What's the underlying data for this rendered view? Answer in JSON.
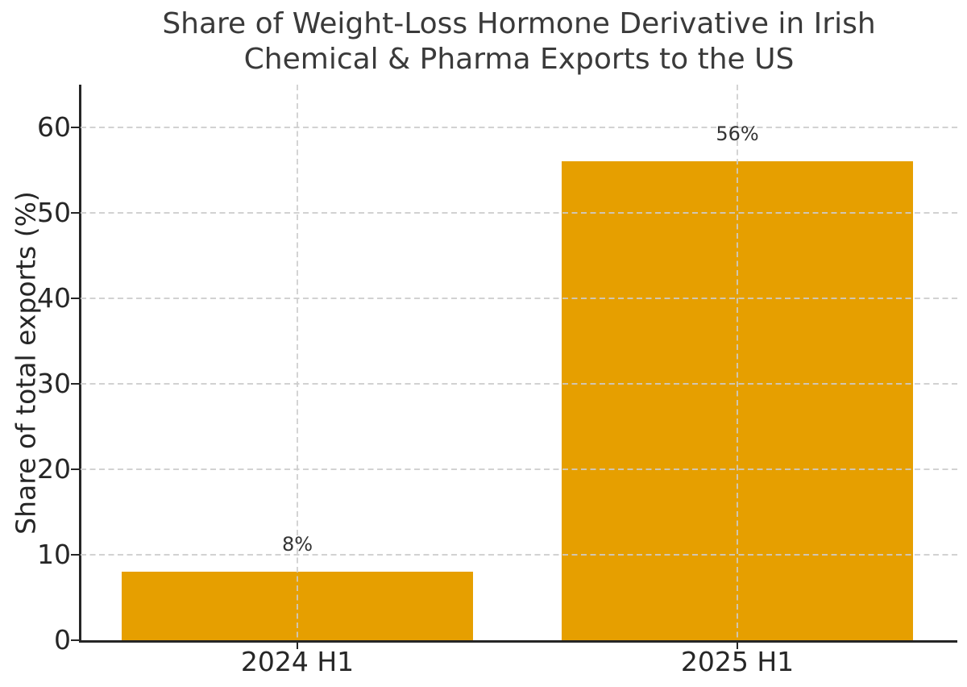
{
  "figure": {
    "title_line1": "Share of Weight-Loss Hormone Derivative in Irish",
    "title_line2": "Chemical & Pharma Exports to the US"
  },
  "chart_data": {
    "type": "bar",
    "title": "Share of Weight-Loss Hormone Derivative in Irish Chemical & Pharma Exports to the US",
    "categories": [
      "2024 H1",
      "2025 H1"
    ],
    "values": [
      8,
      56
    ],
    "bar_value_labels": [
      "8%",
      "56%"
    ],
    "xlabel": "",
    "ylabel": "Share of total exports (%)",
    "yticks": [
      0,
      10,
      20,
      30,
      40,
      50,
      60
    ],
    "ylim": [
      0,
      65
    ],
    "grid": {
      "visible": true,
      "line_style": "dashed",
      "directions": "both",
      "drawn_above_bars": true
    },
    "legend_position": "none",
    "colors": {
      "bar": "#E69F00",
      "grid": "#cccccc",
      "spine": "#262626",
      "tick_label": "#262626",
      "title": "#3a3a3a",
      "annotation": "#333333",
      "background": "#ffffff"
    }
  }
}
